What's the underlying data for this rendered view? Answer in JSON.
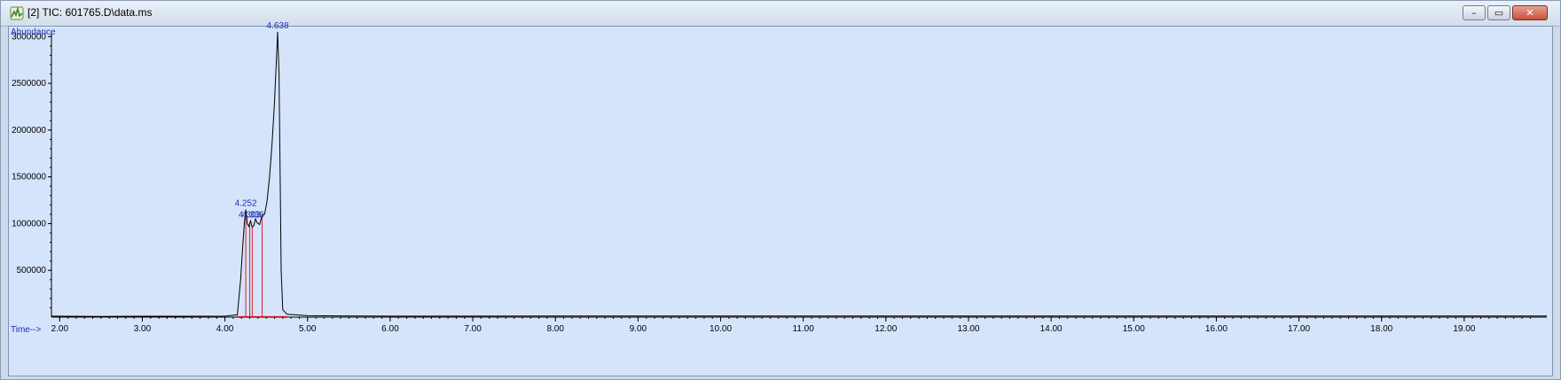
{
  "window": {
    "title": "[2] TIC: 601765.D\\data.ms",
    "icon": "chromatogram-icon",
    "controls": {
      "minimize": "–",
      "restore": "▭",
      "close": "✕"
    }
  },
  "chart_data": {
    "type": "line",
    "ylabel": "Abundance",
    "xlabel": "Time-->",
    "xlim": [
      1.9,
      20.0
    ],
    "ylim": [
      0,
      3050000
    ],
    "x_ticks": [
      "2.00",
      "3.00",
      "4.00",
      "5.00",
      "6.00",
      "7.00",
      "8.00",
      "9.00",
      "10.00",
      "11.00",
      "12.00",
      "13.00",
      "14.00",
      "15.00",
      "16.00",
      "17.00",
      "18.00",
      "19.00"
    ],
    "y_ticks": [
      "500000",
      "1000000",
      "1500000",
      "2000000",
      "2500000",
      "3000000"
    ],
    "series": [
      {
        "x": [
          1.9,
          2.5,
          3.0,
          3.5,
          4.0,
          4.15,
          4.19,
          4.215,
          4.235,
          4.252,
          4.27,
          4.29,
          4.31,
          4.33,
          4.35,
          4.37,
          4.39,
          4.42,
          4.45,
          4.48,
          4.51,
          4.54,
          4.57,
          4.6,
          4.62,
          4.638,
          4.655,
          4.67,
          4.68,
          4.7,
          4.75,
          5.0,
          6.0,
          8.0,
          10.0,
          14.0,
          19.5,
          20.0
        ],
        "y": [
          10000,
          8000,
          9000,
          9000,
          10000,
          25000,
          400000,
          750000,
          1010000,
          1150000,
          1000000,
          970000,
          1030000,
          960000,
          980000,
          1050000,
          1010000,
          990000,
          1090000,
          1100000,
          1240000,
          1500000,
          1850000,
          2300000,
          2700000,
          3050000,
          2600000,
          1400000,
          500000,
          80000,
          30000,
          15000,
          10000,
          12000,
          12000,
          12000,
          12000,
          12000
        ]
      }
    ],
    "integration_markers": [
      4.252,
      4.3,
      4.33,
      4.45
    ],
    "baseline": [
      4.14,
      4.75
    ],
    "peak_labels": [
      {
        "text": "4.252",
        "x": 4.252,
        "y": 1150000
      },
      {
        "text": "4.303",
        "x": 4.3,
        "y": 1030000
      },
      {
        "text": "4.336",
        "x": 4.34,
        "y": 1030000
      },
      {
        "text": "4.638",
        "x": 4.638,
        "y": 3050000
      }
    ],
    "colors": {
      "trace": "#000000",
      "integration": "#e02020",
      "labels": "#1d2fb3",
      "background": "#d6e4fb"
    },
    "grid": false
  }
}
